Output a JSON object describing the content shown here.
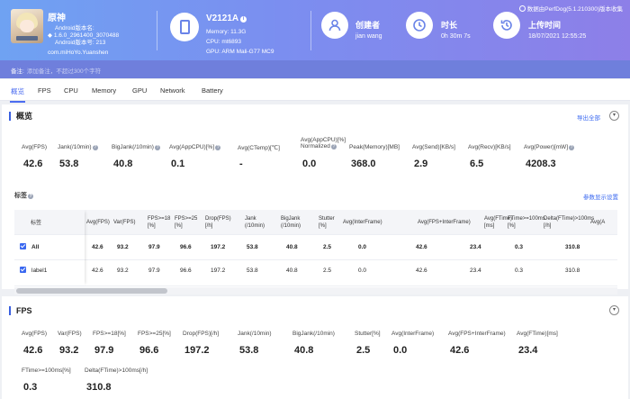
{
  "app": {
    "name": "原神",
    "android_version_name": "Android版本名:",
    "version_name": "1.6.0_2961400_3070488",
    "android_version_code": "Android版本号: 213",
    "package": "com.miHoYo.Yuanshen"
  },
  "device": {
    "name": "V2121A",
    "memory": "Memory: 11.3G",
    "cpu": "CPU: mt6893",
    "gpu": "GPU: ARM Mali-G77 MC9"
  },
  "meta": {
    "creator_label": "创建者",
    "creator_value": "jian wang",
    "duration_label": "时长",
    "duration_value": "0h 30m 7s",
    "upload_label": "上传时间",
    "upload_value": "18/07/2021 12:55:25",
    "source_note": "数据由PerfDog(5.1.210300)版本收集"
  },
  "remark": {
    "label": "备注:",
    "placeholder": "添加备注，不超过300个字符"
  },
  "tabs": [
    "概览",
    "FPS",
    "CPU",
    "Memory",
    "GPU",
    "Network",
    "Battery"
  ],
  "overview": {
    "title": "概览",
    "export_label": "导出全部",
    "stats": [
      {
        "label": "Avg(FPS)",
        "value": "42.6",
        "help": false
      },
      {
        "label": "Jank(/10min)",
        "value": "53.8",
        "help": true
      },
      {
        "label": "BigJank(/10min)",
        "value": "40.8",
        "help": true
      },
      {
        "label": "Avg(AppCPU)[%]",
        "value": "0.1",
        "help": true
      },
      {
        "label": "Avg(CTemp)[℃]",
        "value": "-",
        "help": false
      },
      {
        "label": "Avg(AppCPU)[%]",
        "label2": "Normalized",
        "value": "0.0",
        "help": true
      },
      {
        "label": "Peak(Memory)[MB]",
        "value": "368.0",
        "help": false
      },
      {
        "label": "Avg(Send)[KB/s]",
        "value": "2.9",
        "help": false
      },
      {
        "label": "Avg(Recv)[KB/s]",
        "value": "6.5",
        "help": false
      },
      {
        "label": "Avg(Power)[mW]",
        "value": "4208.3",
        "help": true
      }
    ],
    "labels_title": "标签",
    "param_settings": "参数显示设置",
    "table": {
      "headers": [
        "标签",
        "Avg(FPS)",
        "Var(FPS)",
        "FPS>=18\n[%]",
        "FPS>=25\n[%]",
        "Drop(FPS)\n[/h]",
        "Jank\n(/10min)",
        "BigJank\n(/10min)",
        "Stutter\n[%]",
        "Avg(InterFrame)",
        "Avg(FPS+InterFrame)",
        "Avg(FTime)\n[ms]",
        "FTime>=100ms\n[%]",
        "Delta(FTime)>100ms\n[/h]",
        "Avg(A"
      ],
      "rows": [
        {
          "label": "All",
          "values": [
            "42.6",
            "93.2",
            "97.9",
            "96.6",
            "197.2",
            "53.8",
            "40.8",
            "2.5",
            "0.0",
            "42.6",
            "23.4",
            "0.3",
            "310.8"
          ]
        },
        {
          "label": "label1",
          "values": [
            "42.6",
            "93.2",
            "97.9",
            "96.6",
            "197.2",
            "53.8",
            "40.8",
            "2.5",
            "0.0",
            "42.6",
            "23.4",
            "0.3",
            "310.8"
          ]
        }
      ]
    }
  },
  "fps_section": {
    "title": "FPS",
    "stats": [
      {
        "label": "Avg(FPS)",
        "value": "42.6"
      },
      {
        "label": "Var(FPS)",
        "value": "93.2"
      },
      {
        "label": "FPS>=18[%]",
        "value": "97.9"
      },
      {
        "label": "FPS>=25[%]",
        "value": "96.6"
      },
      {
        "label": "Drop(FPS)[/h]",
        "value": "197.2"
      },
      {
        "label": "Jank(/10min)",
        "value": "53.8"
      },
      {
        "label": "BigJank(/10min)",
        "value": "40.8"
      },
      {
        "label": "Stutter[%]",
        "value": "2.5"
      },
      {
        "label": "Avg(InterFrame)",
        "value": "0.0"
      },
      {
        "label": "Avg(FPS+InterFrame)",
        "value": "42.6"
      },
      {
        "label": "Avg(FTime)[ms]",
        "value": "23.4"
      },
      {
        "label": "FTime>=100ms[%]",
        "value": "0.3"
      },
      {
        "label": "Delta(FTime)>100ms[/h]",
        "value": "310.8"
      }
    ]
  },
  "colors": {
    "accent": "#4b6cf0",
    "banner_start": "#6fa2f2",
    "banner_end": "#8d7fe8"
  }
}
